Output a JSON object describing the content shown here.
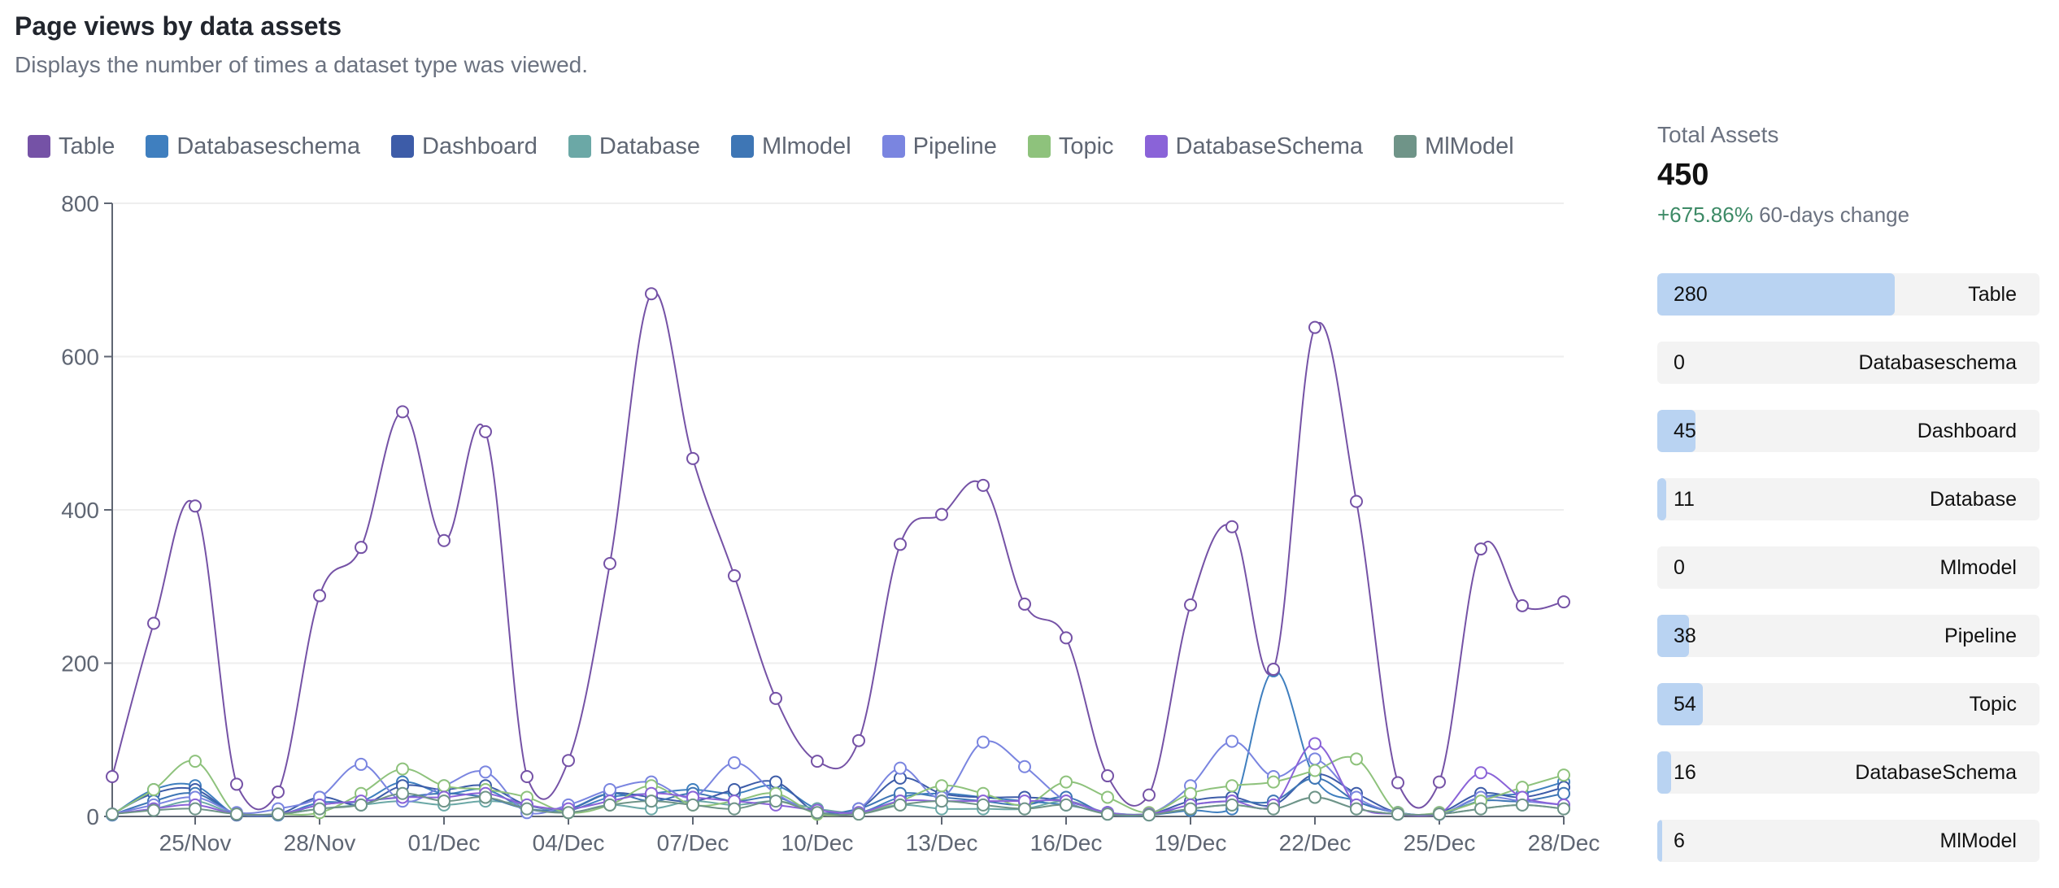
{
  "header": {
    "title": "Page views by data assets",
    "subtitle": "Displays the number of times a dataset type was viewed."
  },
  "summary": {
    "label": "Total Assets",
    "value": "450",
    "change_pct": "+675.86%",
    "change_label": "60-days change"
  },
  "breakdown": [
    {
      "name": "Table",
      "count": "280",
      "fraction": 0.622
    },
    {
      "name": "Databaseschema",
      "count": "0",
      "fraction": 0
    },
    {
      "name": "Dashboard",
      "count": "45",
      "fraction": 0.1
    },
    {
      "name": "Database",
      "count": "11",
      "fraction": 0.024
    },
    {
      "name": "Mlmodel",
      "count": "0",
      "fraction": 0
    },
    {
      "name": "Pipeline",
      "count": "38",
      "fraction": 0.084
    },
    {
      "name": "Topic",
      "count": "54",
      "fraction": 0.12
    },
    {
      "name": "DatabaseSchema",
      "count": "16",
      "fraction": 0.036
    },
    {
      "name": "MlModel",
      "count": "6",
      "fraction": 0.013
    }
  ],
  "chart_data": {
    "type": "line",
    "title": "Page views by data assets",
    "xlabel": "",
    "ylabel": "",
    "ylim": [
      0,
      800
    ],
    "yticks": [
      0,
      200,
      400,
      600,
      800
    ],
    "grid": true,
    "legend_position": "top-left",
    "x": [
      "23/Nov",
      "24/Nov",
      "25/Nov",
      "26/Nov",
      "27/Nov",
      "28/Nov",
      "29/Nov",
      "30/Nov",
      "01/Dec",
      "02/Dec",
      "03/Dec",
      "04/Dec",
      "05/Dec",
      "06/Dec",
      "07/Dec",
      "08/Dec",
      "09/Dec",
      "10/Dec",
      "11/Dec",
      "12/Dec",
      "13/Dec",
      "14/Dec",
      "15/Dec",
      "16/Dec",
      "17/Dec",
      "18/Dec",
      "19/Dec",
      "20/Dec",
      "21/Dec",
      "22/Dec",
      "23/Dec",
      "24/Dec",
      "25/Dec",
      "26/Dec",
      "27/Dec",
      "28/Dec"
    ],
    "x_tick_labels": [
      "25/Nov",
      "28/Nov",
      "01/Dec",
      "04/Dec",
      "07/Dec",
      "10/Dec",
      "13/Dec",
      "16/Dec",
      "19/Dec",
      "22/Dec",
      "25/Dec",
      "28/Dec"
    ],
    "series": [
      {
        "name": "Table",
        "color": "#7552a6",
        "values": [
          52,
          252,
          405,
          42,
          32,
          288,
          351,
          528,
          360,
          502,
          52,
          73,
          330,
          682,
          467,
          314,
          154,
          72,
          99,
          355,
          394,
          432,
          277,
          233,
          53,
          28,
          276,
          378,
          192,
          638,
          411,
          44,
          45,
          349,
          275,
          280
        ]
      },
      {
        "name": "Databaseschema",
        "color": "#3f7fbf",
        "values": [
          2,
          35,
          40,
          2,
          2,
          18,
          20,
          45,
          30,
          35,
          10,
          8,
          25,
          30,
          35,
          30,
          40,
          10,
          5,
          25,
          30,
          25,
          20,
          15,
          5,
          2,
          8,
          10,
          190,
          50,
          20,
          5,
          3,
          25,
          30,
          45
        ]
      },
      {
        "name": "Dashboard",
        "color": "#3d5ca8",
        "values": [
          3,
          30,
          35,
          2,
          3,
          25,
          15,
          40,
          35,
          40,
          15,
          10,
          30,
          25,
          20,
          35,
          45,
          5,
          10,
          50,
          30,
          25,
          25,
          20,
          5,
          3,
          20,
          25,
          15,
          55,
          30,
          5,
          5,
          30,
          25,
          38
        ]
      },
      {
        "name": "Database",
        "color": "#6ba8a6",
        "values": [
          3,
          10,
          20,
          3,
          3,
          10,
          15,
          20,
          15,
          20,
          15,
          5,
          15,
          10,
          20,
          15,
          20,
          10,
          5,
          15,
          10,
          10,
          10,
          20,
          5,
          3,
          10,
          15,
          10,
          25,
          10,
          3,
          3,
          10,
          15,
          10
        ]
      },
      {
        "name": "Mlmodel",
        "color": "#3e76b5",
        "values": [
          2,
          20,
          30,
          3,
          2,
          15,
          20,
          25,
          30,
          25,
          10,
          10,
          30,
          20,
          30,
          20,
          25,
          5,
          10,
          30,
          25,
          20,
          15,
          25,
          3,
          2,
          15,
          20,
          20,
          50,
          20,
          5,
          3,
          20,
          20,
          30
        ]
      },
      {
        "name": "Pipeline",
        "color": "#7a85e0",
        "values": [
          3,
          15,
          25,
          5,
          10,
          25,
          68,
          20,
          40,
          58,
          5,
          15,
          35,
          45,
          25,
          70,
          30,
          5,
          10,
          63,
          25,
          97,
          65,
          20,
          5,
          3,
          40,
          98,
          52,
          75,
          25,
          5,
          3,
          25,
          20,
          15
        ]
      },
      {
        "name": "Topic",
        "color": "#8ec27c",
        "values": [
          3,
          35,
          72,
          3,
          3,
          5,
          30,
          62,
          40,
          35,
          25,
          5,
          15,
          40,
          15,
          20,
          30,
          3,
          5,
          20,
          40,
          30,
          15,
          45,
          25,
          5,
          30,
          40,
          45,
          60,
          75,
          5,
          5,
          20,
          38,
          54
        ]
      },
      {
        "name": "DatabaseSchema",
        "color": "#8a63d8",
        "values": [
          3,
          10,
          15,
          3,
          3,
          15,
          20,
          25,
          25,
          30,
          15,
          10,
          20,
          30,
          25,
          20,
          15,
          8,
          5,
          20,
          20,
          20,
          20,
          20,
          5,
          3,
          15,
          20,
          15,
          95,
          15,
          3,
          3,
          57,
          25,
          15
        ]
      },
      {
        "name": "MlModel",
        "color": "#6f9488",
        "values": [
          3,
          8,
          10,
          3,
          3,
          10,
          15,
          30,
          20,
          25,
          10,
          5,
          15,
          20,
          15,
          10,
          20,
          5,
          3,
          15,
          20,
          15,
          10,
          15,
          3,
          2,
          10,
          15,
          10,
          25,
          10,
          3,
          3,
          10,
          15,
          10
        ]
      }
    ]
  }
}
